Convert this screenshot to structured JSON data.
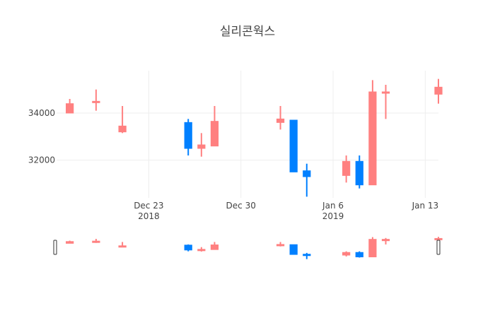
{
  "chart_data": {
    "type": "candlestick",
    "title": "실리콘웍스",
    "x_axis": {
      "type": "date",
      "range": [
        "2018-12-16",
        "2019-01-14"
      ],
      "ticks": [
        {
          "date": "2018-12-23",
          "label": "Dec 23",
          "sublabel": "2018"
        },
        {
          "date": "2018-12-30",
          "label": "Dec 30",
          "sublabel": ""
        },
        {
          "date": "2019-01-06",
          "label": "Jan 6",
          "sublabel": "2019"
        },
        {
          "date": "2019-01-13",
          "label": "Jan 13",
          "sublabel": ""
        }
      ]
    },
    "y_axis": {
      "range": [
        30400,
        35800
      ],
      "ticks": [
        32000,
        34000
      ],
      "grid": true
    },
    "increasing_color": "#ff8080",
    "decreasing_color": "#0080ff",
    "candles": [
      {
        "date": "2018-12-17",
        "open": 34000,
        "high": 34600,
        "low": 34000,
        "close": 34400
      },
      {
        "date": "2018-12-19",
        "open": 34500,
        "high": 35000,
        "low": 34100,
        "close": 34500
      },
      {
        "date": "2018-12-21",
        "open": 33200,
        "high": 34300,
        "low": 33150,
        "close": 33450
      },
      {
        "date": "2018-12-26",
        "open": 33600,
        "high": 33750,
        "low": 32200,
        "close": 32500
      },
      {
        "date": "2018-12-27",
        "open": 32500,
        "high": 33150,
        "low": 32150,
        "close": 32650
      },
      {
        "date": "2018-12-28",
        "open": 32600,
        "high": 34300,
        "low": 32600,
        "close": 33650
      },
      {
        "date": "2019-01-02",
        "open": 33600,
        "high": 34300,
        "low": 33300,
        "close": 33750
      },
      {
        "date": "2019-01-03",
        "open": 33700,
        "high": 33700,
        "low": 31500,
        "close": 31500
      },
      {
        "date": "2019-01-04",
        "open": 31550,
        "high": 31850,
        "low": 30450,
        "close": 31300
      },
      {
        "date": "2019-01-07",
        "open": 31350,
        "high": 32200,
        "low": 31050,
        "close": 31950
      },
      {
        "date": "2019-01-08",
        "open": 31950,
        "high": 32200,
        "low": 30800,
        "close": 30950
      },
      {
        "date": "2019-01-09",
        "open": 30950,
        "high": 35400,
        "low": 30950,
        "close": 34900
      },
      {
        "date": "2019-01-10",
        "open": 34850,
        "high": 35200,
        "low": 33750,
        "close": 34900
      },
      {
        "date": "2019-01-14",
        "open": 34800,
        "high": 35450,
        "low": 34400,
        "close": 35100
      }
    ],
    "range_slider": true,
    "legend": "none"
  }
}
